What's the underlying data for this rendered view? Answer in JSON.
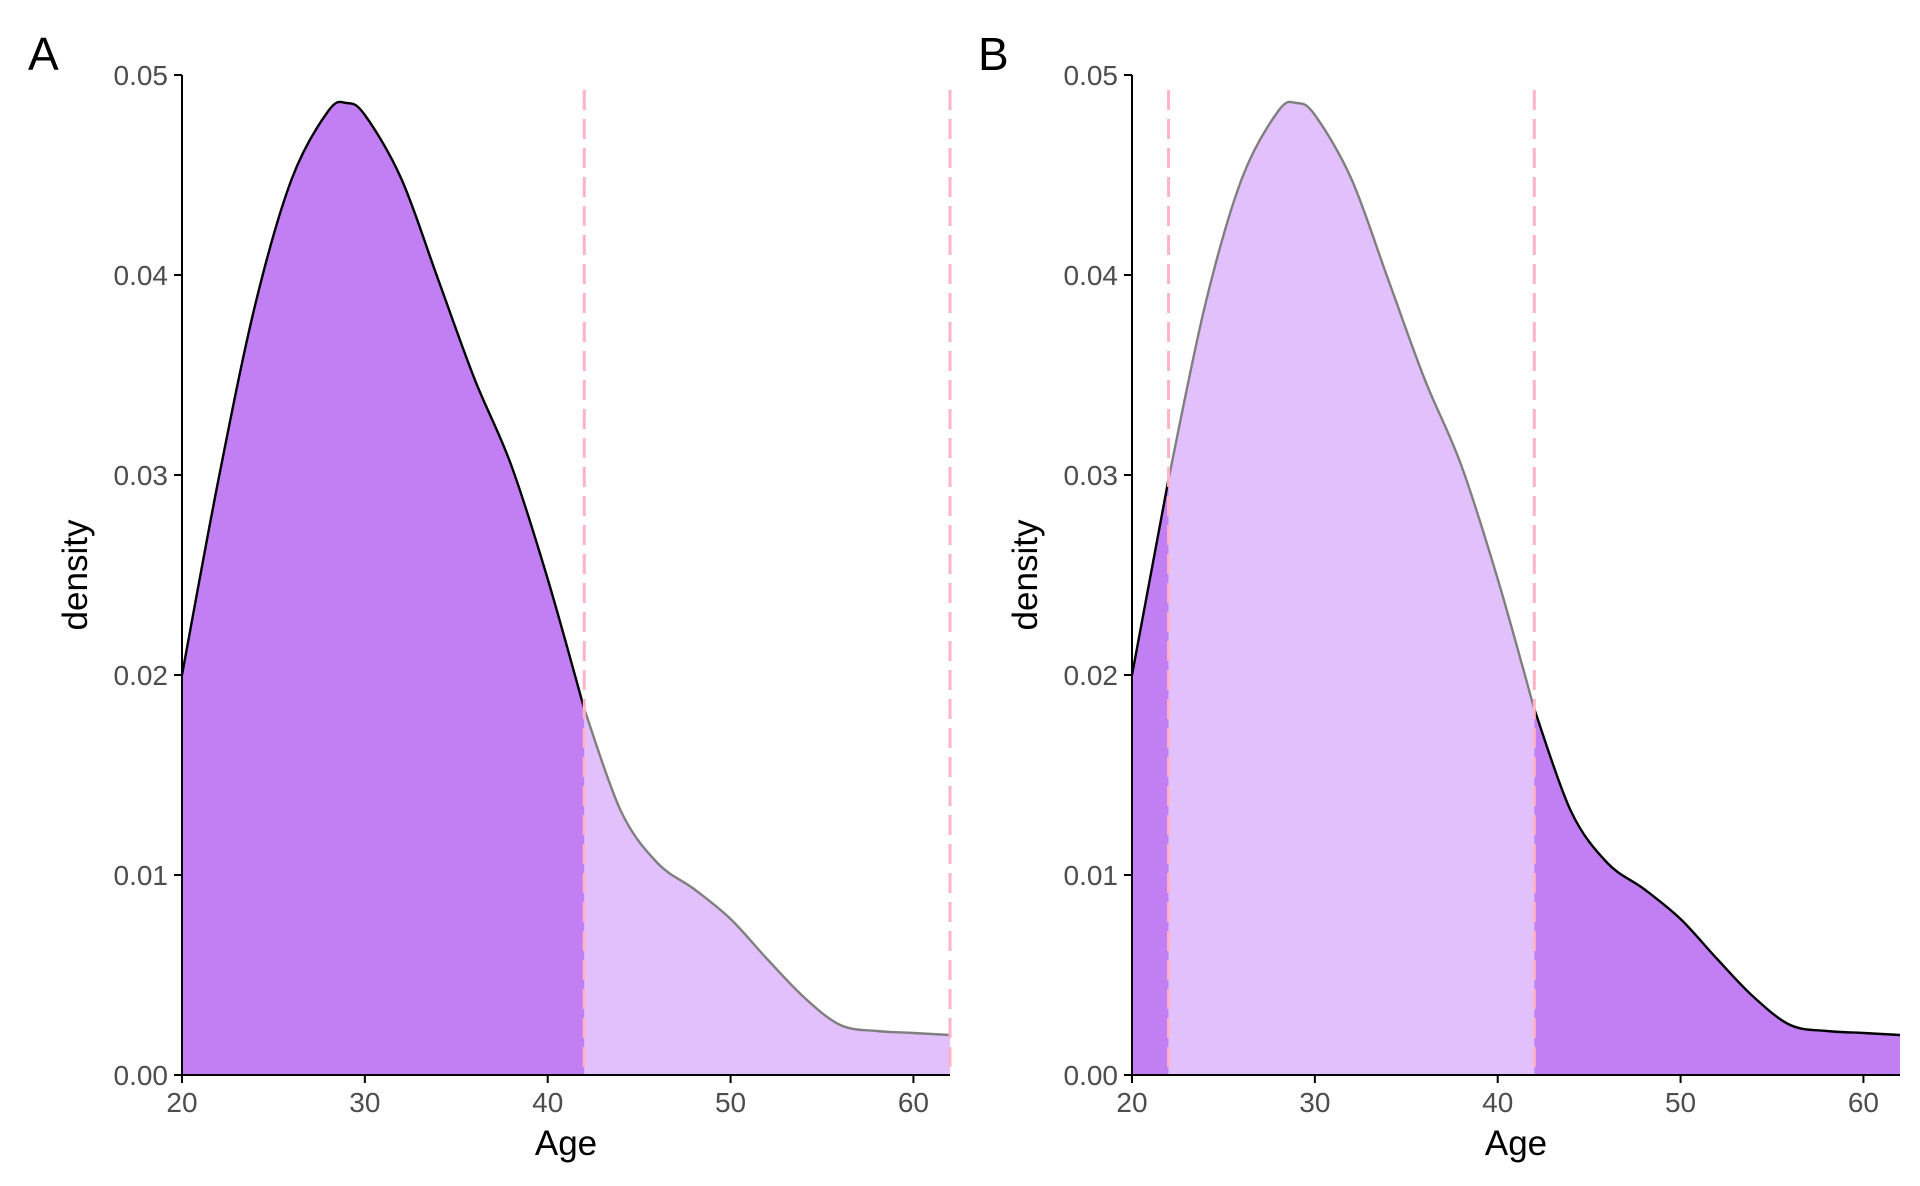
{
  "colors": {
    "fill_dark": "#c27ff4",
    "fill_light": "#e2c0fb",
    "line_dark": "#000000",
    "line_light": "#7f7f7f",
    "dash": "#ffb3c6",
    "axis": "#000000"
  },
  "chart_data": [
    {
      "type": "area",
      "tag": "A",
      "xlabel": "Age",
      "ylabel": "density",
      "xlim": [
        20,
        62
      ],
      "ylim": [
        0,
        0.05
      ],
      "xticks": [
        20,
        30,
        40,
        50,
        60
      ],
      "yticks": [
        0.0,
        0.01,
        0.02,
        0.03,
        0.04,
        0.05
      ],
      "ytick_labels": [
        "0.00",
        "0.01",
        "0.02",
        "0.03",
        "0.04",
        "0.05"
      ],
      "grid": false,
      "dashed_lines_x": [
        42,
        62
      ],
      "dark_ranges": [
        [
          20,
          42
        ]
      ],
      "series": [
        {
          "x": [
            20,
            22,
            24,
            26,
            28,
            29,
            30,
            32,
            34,
            36,
            38,
            40,
            42,
            44,
            46,
            48,
            50,
            52,
            54,
            56,
            58,
            60,
            62
          ],
          "y": [
            0.02,
            0.0298,
            0.0385,
            0.0448,
            0.0482,
            0.0486,
            0.048,
            0.0448,
            0.0398,
            0.0348,
            0.0305,
            0.0248,
            0.0183,
            0.0132,
            0.0106,
            0.0093,
            0.0078,
            0.0058,
            0.0039,
            0.0025,
            0.0022,
            0.0021,
            0.002
          ]
        }
      ]
    },
    {
      "type": "area",
      "tag": "B",
      "xlabel": "Age",
      "ylabel": "density",
      "xlim": [
        20,
        62
      ],
      "ylim": [
        0,
        0.05
      ],
      "xticks": [
        20,
        30,
        40,
        50,
        60
      ],
      "yticks": [
        0.0,
        0.01,
        0.02,
        0.03,
        0.04,
        0.05
      ],
      "ytick_labels": [
        "0.00",
        "0.01",
        "0.02",
        "0.03",
        "0.04",
        "0.05"
      ],
      "grid": false,
      "dashed_lines_x": [
        22,
        42
      ],
      "dark_ranges": [
        [
          20,
          22
        ],
        [
          42,
          62
        ]
      ],
      "series": [
        {
          "x": [
            20,
            22,
            24,
            26,
            28,
            29,
            30,
            32,
            34,
            36,
            38,
            40,
            42,
            44,
            46,
            48,
            50,
            52,
            54,
            56,
            58,
            60,
            62
          ],
          "y": [
            0.02,
            0.0298,
            0.0385,
            0.0448,
            0.0482,
            0.0486,
            0.048,
            0.0448,
            0.0398,
            0.0348,
            0.0305,
            0.0248,
            0.0183,
            0.0132,
            0.0106,
            0.0093,
            0.0078,
            0.0058,
            0.0039,
            0.0025,
            0.0022,
            0.0021,
            0.002
          ]
        }
      ]
    }
  ]
}
